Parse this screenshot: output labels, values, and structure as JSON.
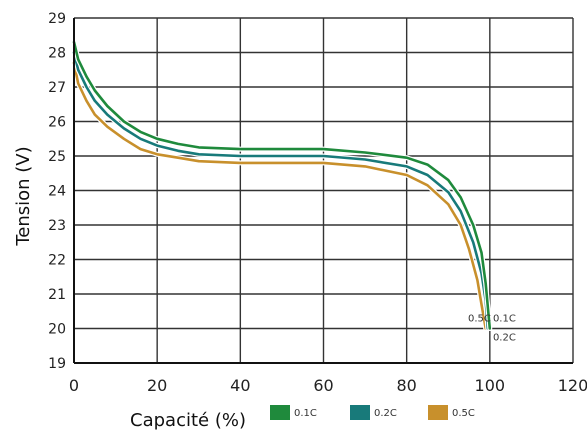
{
  "chart_data": {
    "type": "line",
    "xlabel": "Capacité (%)",
    "ylabel": "Tension (V)",
    "xlim": [
      0,
      120
    ],
    "ylim": [
      19,
      29
    ],
    "xticks": [
      0,
      20,
      40,
      60,
      80,
      100,
      120
    ],
    "yticks": [
      19,
      20,
      21,
      22,
      23,
      24,
      25,
      26,
      27,
      28,
      29
    ],
    "grid": true,
    "legend_position": "bottom",
    "series": [
      {
        "name": "0.1C",
        "color": "#1f8a3c",
        "points": [
          [
            0,
            28.3
          ],
          [
            1,
            27.8
          ],
          [
            3,
            27.3
          ],
          [
            5,
            26.9
          ],
          [
            8,
            26.45
          ],
          [
            12,
            26.0
          ],
          [
            16,
            25.7
          ],
          [
            20,
            25.5
          ],
          [
            25,
            25.35
          ],
          [
            30,
            25.25
          ],
          [
            40,
            25.2
          ],
          [
            50,
            25.2
          ],
          [
            60,
            25.2
          ],
          [
            70,
            25.1
          ],
          [
            80,
            24.95
          ],
          [
            85,
            24.75
          ],
          [
            90,
            24.3
          ],
          [
            93,
            23.8
          ],
          [
            96,
            23.0
          ],
          [
            98,
            22.2
          ],
          [
            99,
            21.3
          ],
          [
            100,
            20.0
          ]
        ]
      },
      {
        "name": "0.2C",
        "color": "#187a7a",
        "points": [
          [
            0,
            28.0
          ],
          [
            1,
            27.5
          ],
          [
            3,
            27.0
          ],
          [
            5,
            26.6
          ],
          [
            8,
            26.2
          ],
          [
            12,
            25.8
          ],
          [
            16,
            25.5
          ],
          [
            20,
            25.3
          ],
          [
            25,
            25.15
          ],
          [
            30,
            25.05
          ],
          [
            40,
            25.0
          ],
          [
            50,
            25.0
          ],
          [
            60,
            25.0
          ],
          [
            70,
            24.9
          ],
          [
            80,
            24.7
          ],
          [
            85,
            24.45
          ],
          [
            90,
            23.95
          ],
          [
            93,
            23.4
          ],
          [
            96,
            22.5
          ],
          [
            98,
            21.6
          ],
          [
            99,
            20.8
          ],
          [
            99.5,
            20.0
          ]
        ]
      },
      {
        "name": "0.5C",
        "color": "#c8902c",
        "points": [
          [
            0,
            27.7
          ],
          [
            1,
            27.1
          ],
          [
            3,
            26.6
          ],
          [
            5,
            26.2
          ],
          [
            8,
            25.85
          ],
          [
            12,
            25.5
          ],
          [
            16,
            25.2
          ],
          [
            20,
            25.05
          ],
          [
            25,
            24.95
          ],
          [
            30,
            24.85
          ],
          [
            40,
            24.8
          ],
          [
            50,
            24.8
          ],
          [
            60,
            24.8
          ],
          [
            70,
            24.7
          ],
          [
            80,
            24.45
          ],
          [
            85,
            24.15
          ],
          [
            90,
            23.6
          ],
          [
            93,
            23.0
          ],
          [
            95,
            22.3
          ],
          [
            97,
            21.4
          ],
          [
            98,
            20.7
          ],
          [
            99,
            20.0
          ]
        ]
      }
    ],
    "annotations": [
      {
        "text": "0.5C",
        "x": 97.5,
        "y": 20.2
      },
      {
        "text": "0.1C",
        "x": 103.5,
        "y": 20.2
      },
      {
        "text": "0.2C",
        "x": 103.5,
        "y": 19.65
      }
    ],
    "legend": [
      "0.1C",
      "0.2C",
      "0.5C"
    ]
  }
}
